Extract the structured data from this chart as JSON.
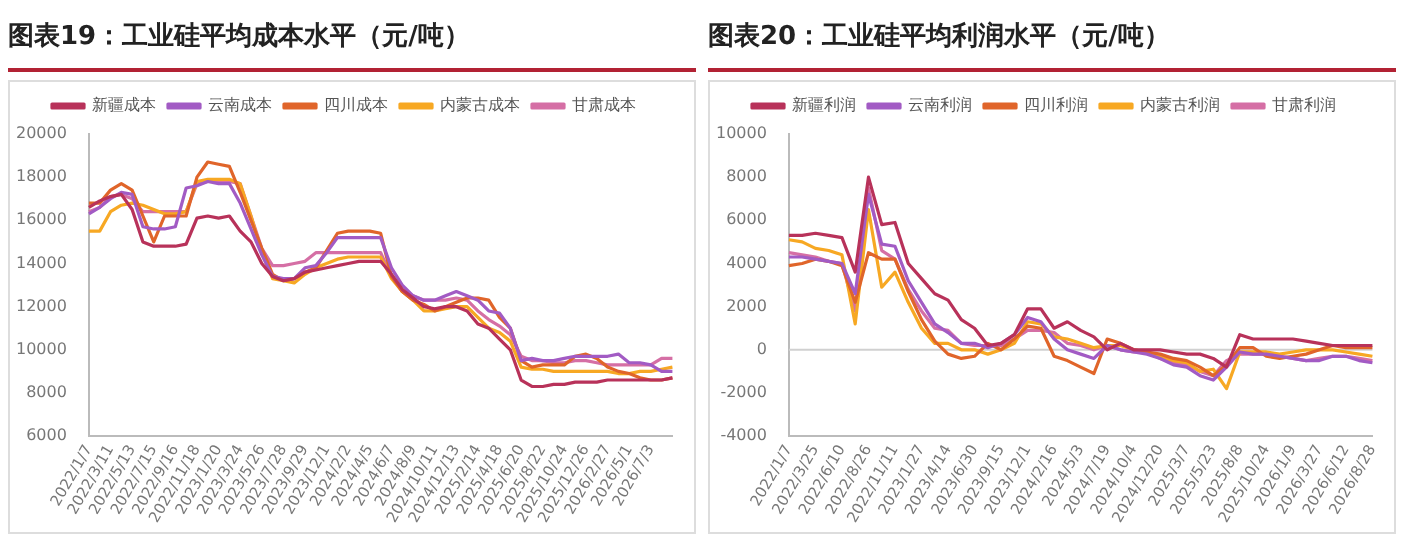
{
  "chart_data": [
    {
      "type": "line",
      "title": "图表19：工业硅平均成本水平（元/吨）",
      "legend": "top",
      "grid": false,
      "marker": "none",
      "line_style": "solid",
      "categories": [
        "2022/1/7",
        null,
        "2022/3/11",
        null,
        "2022/5/13",
        null,
        "2022/7/15",
        null,
        "2022/9/16",
        null,
        "2022/11/18",
        null,
        "2023/1/20",
        null,
        "2023/3/24",
        null,
        "2023/5/26",
        null,
        "2023/7/28",
        null,
        "2023/9/29",
        null,
        "2023/12/1",
        null,
        "2024/2/2",
        null,
        "2024/4/5",
        null,
        "2024/6/7",
        null,
        "2024/8/9",
        null,
        "2024/10/11",
        null,
        "2024/12/13",
        null,
        "2025/2/14",
        null,
        "2025/4/18",
        null,
        "2025/6/20",
        null,
        "2025/8/22",
        null,
        "2025/10/24",
        null,
        "2025/12/26",
        null,
        "2026/2/27",
        null,
        "2026/5/1",
        null,
        "2026/7/3",
        null,
        null
      ],
      "ylim": [
        6000,
        20000
      ],
      "yticks": [
        6000,
        8000,
        10000,
        12000,
        14000,
        16000,
        18000,
        20000
      ],
      "series": [
        {
          "name": "新疆成本",
          "color": "#b8325a",
          "values": [
            16600,
            16900,
            17100,
            17200,
            16500,
            15000,
            14800,
            14800,
            14800,
            14900,
            16100,
            16200,
            16100,
            16200,
            15500,
            15000,
            14000,
            13400,
            13200,
            13300,
            13600,
            13700,
            13800,
            13900,
            14000,
            14100,
            14100,
            14100,
            13500,
            12800,
            12400,
            12000,
            11900,
            12000,
            12000,
            11800,
            11200,
            11000,
            10500,
            10000,
            8600,
            8300,
            8300,
            8400,
            8400,
            8500,
            8500,
            8500,
            8600,
            8600,
            8600,
            8600,
            8600,
            8600,
            8700
          ]
        },
        {
          "name": "云南成本",
          "color": "#a25bc4",
          "values": [
            16300,
            16600,
            17000,
            17300,
            17200,
            15700,
            15600,
            15600,
            15700,
            17500,
            17600,
            17800,
            17700,
            17700,
            16800,
            15600,
            14400,
            13400,
            13300,
            13300,
            13800,
            13900,
            14500,
            15200,
            15200,
            15200,
            15200,
            15200,
            13800,
            13000,
            12500,
            12300,
            12300,
            12500,
            12700,
            12500,
            12300,
            11800,
            11700,
            11000,
            9500,
            9600,
            9500,
            9500,
            9600,
            9700,
            9700,
            9700,
            9700,
            9800,
            9400,
            9400,
            9300,
            9000,
            9000
          ]
        },
        {
          "name": "四川成本",
          "color": "#e0652a",
          "values": [
            16800,
            16800,
            17400,
            17700,
            17400,
            16200,
            15000,
            16200,
            16200,
            16200,
            18000,
            18700,
            18600,
            18500,
            17300,
            16000,
            14700,
            13500,
            13200,
            13300,
            13600,
            13800,
            14600,
            15400,
            15500,
            15500,
            15500,
            15400,
            13400,
            12700,
            12300,
            12100,
            11800,
            12000,
            12200,
            12400,
            12400,
            12300,
            11500,
            11000,
            9500,
            9200,
            9300,
            9300,
            9300,
            9700,
            9800,
            9600,
            9200,
            9000,
            8900,
            8700,
            8600,
            8600,
            8700
          ]
        },
        {
          "name": "内蒙古成本",
          "color": "#f7a823",
          "values": [
            15500,
            15500,
            16400,
            16700,
            16800,
            16700,
            16500,
            16300,
            16300,
            16400,
            17800,
            17900,
            17900,
            17900,
            17700,
            16200,
            14500,
            13300,
            13200,
            13100,
            13500,
            13800,
            14000,
            14200,
            14300,
            14300,
            14300,
            14300,
            13300,
            12700,
            12300,
            11800,
            11800,
            11900,
            12000,
            12000,
            11500,
            11000,
            10800,
            10400,
            9200,
            9100,
            9100,
            9000,
            9000,
            9000,
            9000,
            9000,
            9000,
            8900,
            8900,
            9000,
            9000,
            9100,
            9200
          ]
        },
        {
          "name": "甘肃成本",
          "color": "#d56fa5",
          "values": [
            16400,
            16600,
            17100,
            17200,
            17000,
            16400,
            16400,
            16400,
            16400,
            16400,
            17700,
            17800,
            17800,
            17800,
            17700,
            16200,
            14700,
            13900,
            13900,
            14000,
            14100,
            14500,
            14500,
            14500,
            14500,
            14500,
            14500,
            14500,
            13400,
            12700,
            12500,
            12300,
            12300,
            12300,
            12400,
            12300,
            11800,
            11400,
            11100,
            10700,
            9700,
            9500,
            9500,
            9400,
            9400,
            9500,
            9500,
            9400,
            9300,
            9300,
            9300,
            9300,
            9300,
            9600,
            9600
          ]
        }
      ]
    },
    {
      "type": "line",
      "title": "图表20：工业硅平均利润水平（元/吨）",
      "legend": "top",
      "grid": false,
      "marker": "none",
      "line_style": "solid",
      "categories": [
        "2022/1/7",
        null,
        "2022/3/25",
        null,
        "2022/6/10",
        null,
        "2022/8/26",
        null,
        "2022/11/11",
        null,
        "2023/1/27",
        null,
        "2023/4/14",
        null,
        "2023/6/30",
        null,
        "2023/9/15",
        null,
        "2023/12/1",
        null,
        "2024/2/16",
        null,
        "2024/5/3",
        null,
        "2024/7/19",
        null,
        "2024/10/4",
        null,
        "2024/12/20",
        null,
        "2025/3/7",
        null,
        "2025/5/23",
        null,
        "2025/8/8",
        null,
        "2025/10/24",
        null,
        "2026/1/9",
        null,
        "2026/3/27",
        null,
        "2026/6/12",
        null,
        "2026/8/28"
      ],
      "ylim": [
        -4000,
        10000
      ],
      "yticks": [
        -4000,
        -2000,
        0,
        2000,
        4000,
        6000,
        8000,
        10000
      ],
      "ref_lines": [
        {
          "axis": "y",
          "value": 0,
          "color": "#d0d0d0"
        }
      ],
      "series": [
        {
          "name": "新疆利润",
          "color": "#b8325a",
          "values": [
            5300,
            5300,
            5400,
            5300,
            5200,
            3600,
            8000,
            5800,
            5900,
            4000,
            3300,
            2600,
            2300,
            1400,
            1000,
            200,
            300,
            700,
            1900,
            1900,
            1000,
            1300,
            900,
            600,
            0,
            300,
            0,
            0,
            0,
            -100,
            -200,
            -200,
            -400,
            -800,
            700,
            500,
            500,
            500,
            500,
            400,
            300,
            200,
            200,
            200,
            200
          ]
        },
        {
          "name": "云南利润",
          "color": "#a25bc4",
          "values": [
            4300,
            4300,
            4200,
            4100,
            4000,
            2600,
            7200,
            4900,
            4800,
            3200,
            2200,
            1200,
            800,
            300,
            300,
            100,
            300,
            700,
            1500,
            1300,
            500,
            0,
            -200,
            -400,
            200,
            0,
            -100,
            -200,
            -400,
            -700,
            -800,
            -1200,
            -1400,
            -800,
            -100,
            -200,
            -200,
            -300,
            -400,
            -500,
            -500,
            -300,
            -300,
            -500,
            -600
          ]
        },
        {
          "name": "四川利润",
          "color": "#e0652a",
          "values": [
            3900,
            4000,
            4200,
            4100,
            3900,
            2200,
            4500,
            4200,
            4200,
            2700,
            1400,
            400,
            -200,
            -400,
            -300,
            300,
            0,
            500,
            1100,
            1000,
            -300,
            -500,
            -800,
            -1100,
            500,
            300,
            0,
            -100,
            -200,
            -400,
            -500,
            -800,
            -1200,
            -700,
            100,
            100,
            -300,
            -400,
            -300,
            -200,
            0,
            200,
            100,
            100,
            100
          ]
        },
        {
          "name": "内蒙古利润",
          "color": "#f7a823",
          "values": [
            5100,
            5000,
            4700,
            4600,
            4400,
            1200,
            6500,
            2900,
            3600,
            2200,
            1000,
            300,
            300,
            0,
            0,
            -200,
            0,
            300,
            1300,
            1200,
            600,
            500,
            300,
            100,
            200,
            200,
            0,
            -100,
            -300,
            -500,
            -600,
            -1000,
            -900,
            -1800,
            -100,
            -100,
            -100,
            -200,
            -100,
            0,
            0,
            0,
            -100,
            -200,
            -300
          ]
        },
        {
          "name": "甘肃利润",
          "color": "#d56fa5",
          "values": [
            4500,
            4400,
            4300,
            4100,
            4000,
            1800,
            7500,
            4600,
            4200,
            2800,
            1800,
            1000,
            900,
            300,
            200,
            200,
            200,
            500,
            900,
            900,
            800,
            300,
            200,
            0,
            200,
            0,
            -100,
            -100,
            -400,
            -600,
            -700,
            -1000,
            -1200,
            -500,
            -200,
            -200,
            -200,
            -300,
            -400,
            -500,
            -400,
            -300,
            -300,
            -400,
            -500
          ]
        }
      ]
    }
  ]
}
